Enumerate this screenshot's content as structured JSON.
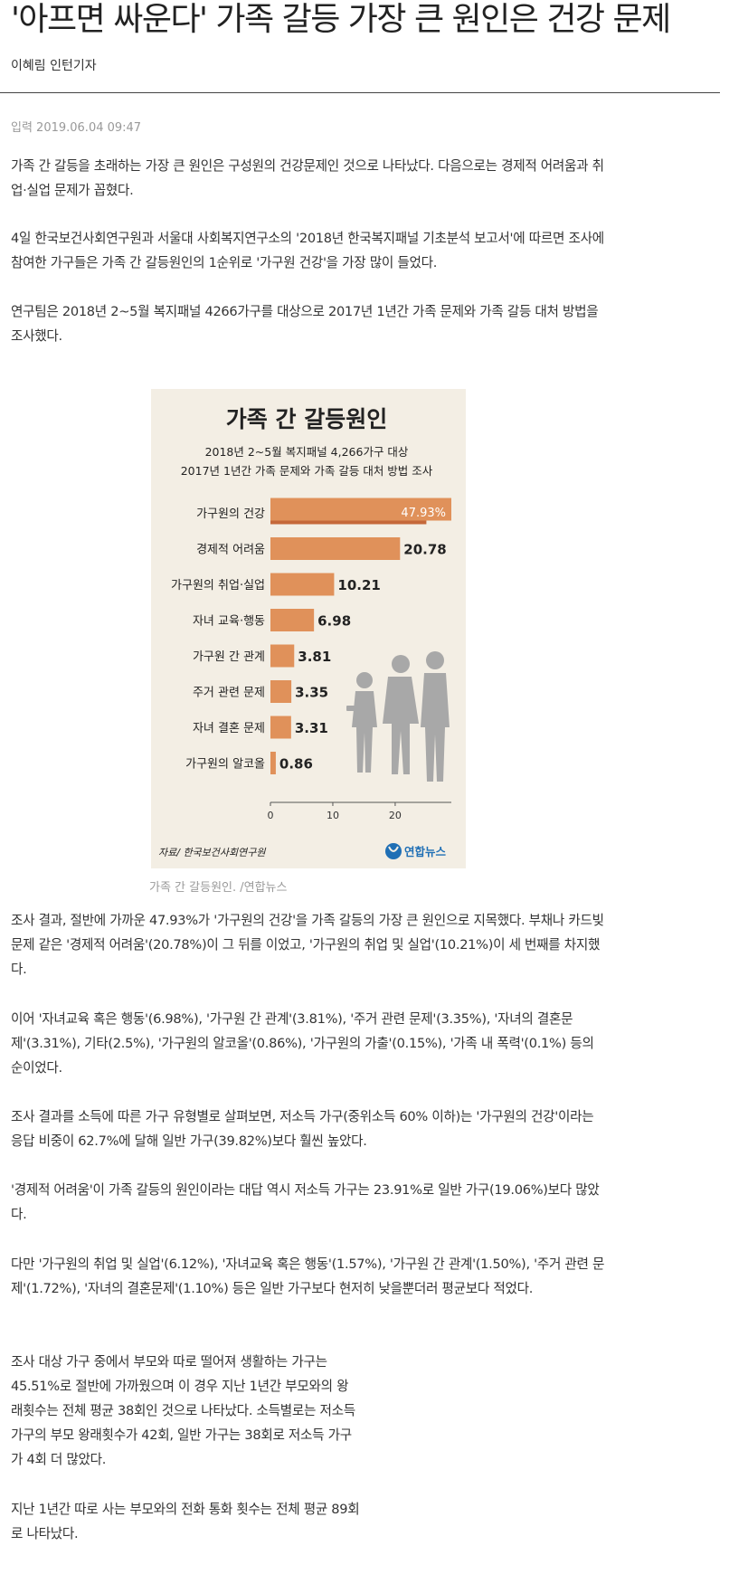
{
  "article": {
    "headline": "'아프면 싸운다' 가족 갈등 가장 큰 원인은 건강 문제",
    "byline": "이혜림 인턴기자",
    "dateline": "입력 2019.06.04 09:47",
    "paragraphs_top": [
      "가족 간 갈등을 초래하는 가장 큰 원인은 구성원의 건강문제인 것으로 나타났다. 다음으로는 경제적 어려움과 취업·실업 문제가 꼽혔다.",
      "4일 한국보건사회연구원과 서울대 사회복지연구소의 '2018년 한국복지패널 기초분석 보고서'에 따르면 조사에 참여한 가구들은 가족 간 갈등원인의 1순위로 '가구원 건강'을 가장 많이 들었다.",
      "연구팀은 2018년 2~5월 복지패널 4266가구를 대상으로 2017년 1년간 가족 문제와 가족 갈등 대처 방법을 조사했다."
    ],
    "photo_caption": "가족 간 갈등원인. /연합뉴스",
    "paragraphs_bottom": [
      "조사 결과, 절반에 가까운 47.93%가 '가구원의 건강'을 가족 갈등의 가장 큰 원인으로 지목했다. 부채나 카드빚 문제 같은 '경제적 어려움'(20.78%)이 그 뒤를 이었고, '가구원의 취업 및 실업'(10.21%)이 세 번째를 차지했다.",
      "이어 '자녀교육 혹은 행동'(6.98%), '가구원 간 관계'(3.81%), '주거 관련 문제'(3.35%), '자녀의 결혼문제'(3.31%), 기타(2.5%), '가구원의 알코올'(0.86%), '가구원의 가출'(0.15%), '가족 내 폭력'(0.1%) 등의 순이었다.",
      "조사 결과를 소득에 따른 가구 유형별로 살펴보면, 저소득 가구(중위소득 60% 이하)는 '가구원의 건강'이라는 응답 비중이 62.7%에 달해 일반 가구(39.82%)보다 훨씬 높았다.",
      "'경제적 어려움'이 가족 갈등의 원인이라는 대답 역시 저소득 가구는 23.91%로 일반 가구(19.06%)보다 많았다.",
      "다만 '가구원의 취업 및 실업'(6.12%), '자녀교육 혹은 행동'(1.57%), '가구원 간 관계'(1.50%), '주거 관련 문제'(1.72%), '자녀의 결혼문제'(1.10%) 등은 일반 가구보다 현저히 낮을뿐더러 평균보다 적었다.",
      "조사 대상 가구 중에서 부모와 따로 떨어져 생활하는 가구는 45.51%로 절반에 가까웠으며 이 경우 지난 1년간 부모와의 왕래횟수는 전체 평균 38회인 것으로 나타났다. 소득별로는 저소득 가구의 부모 왕래횟수가 42회, 일반 가구는 38회로 저소득 가구가 4회 더 많았다.",
      "지난 1년간 따로 사는 부모와의 전화 통화 횟수는 전체 평균 89회로 나타났다."
    ]
  },
  "chart_data": {
    "type": "bar",
    "orientation": "horizontal",
    "title": "가족 간 갈등원인",
    "subtitle_lines": [
      "2018년 2~5월 복지패널 4,266가구 대상",
      "2017년 1년간 가족 문제와 가족 갈등 대처 방법 조사"
    ],
    "categories": [
      "가구원의 건강",
      "경제적 어려움",
      "가구원의 취업·실업",
      "자녀 교육·행동",
      "가구원 간 관계",
      "주거 관련 문제",
      "자녀 결혼 문제",
      "가구원의 알코올"
    ],
    "values": [
      47.93,
      20.78,
      10.21,
      6.98,
      3.81,
      3.35,
      3.31,
      0.86
    ],
    "value_labels": [
      "47.93%",
      "20.78",
      "10.21",
      "6.98",
      "3.81",
      "3.35",
      "3.31",
      "0.86"
    ],
    "x_ticks": [
      0,
      10,
      20
    ],
    "xlim": [
      0,
      29
    ],
    "source": "자료/ 한국보건사회연구원",
    "credit": "연합뉴스",
    "colors": {
      "bar": "#e0915a",
      "bar_dark": "#c5683a",
      "background": "#f3eee4",
      "text": "#222222",
      "figures": "#a8a8a8",
      "logo": "#1f6fb5"
    }
  }
}
